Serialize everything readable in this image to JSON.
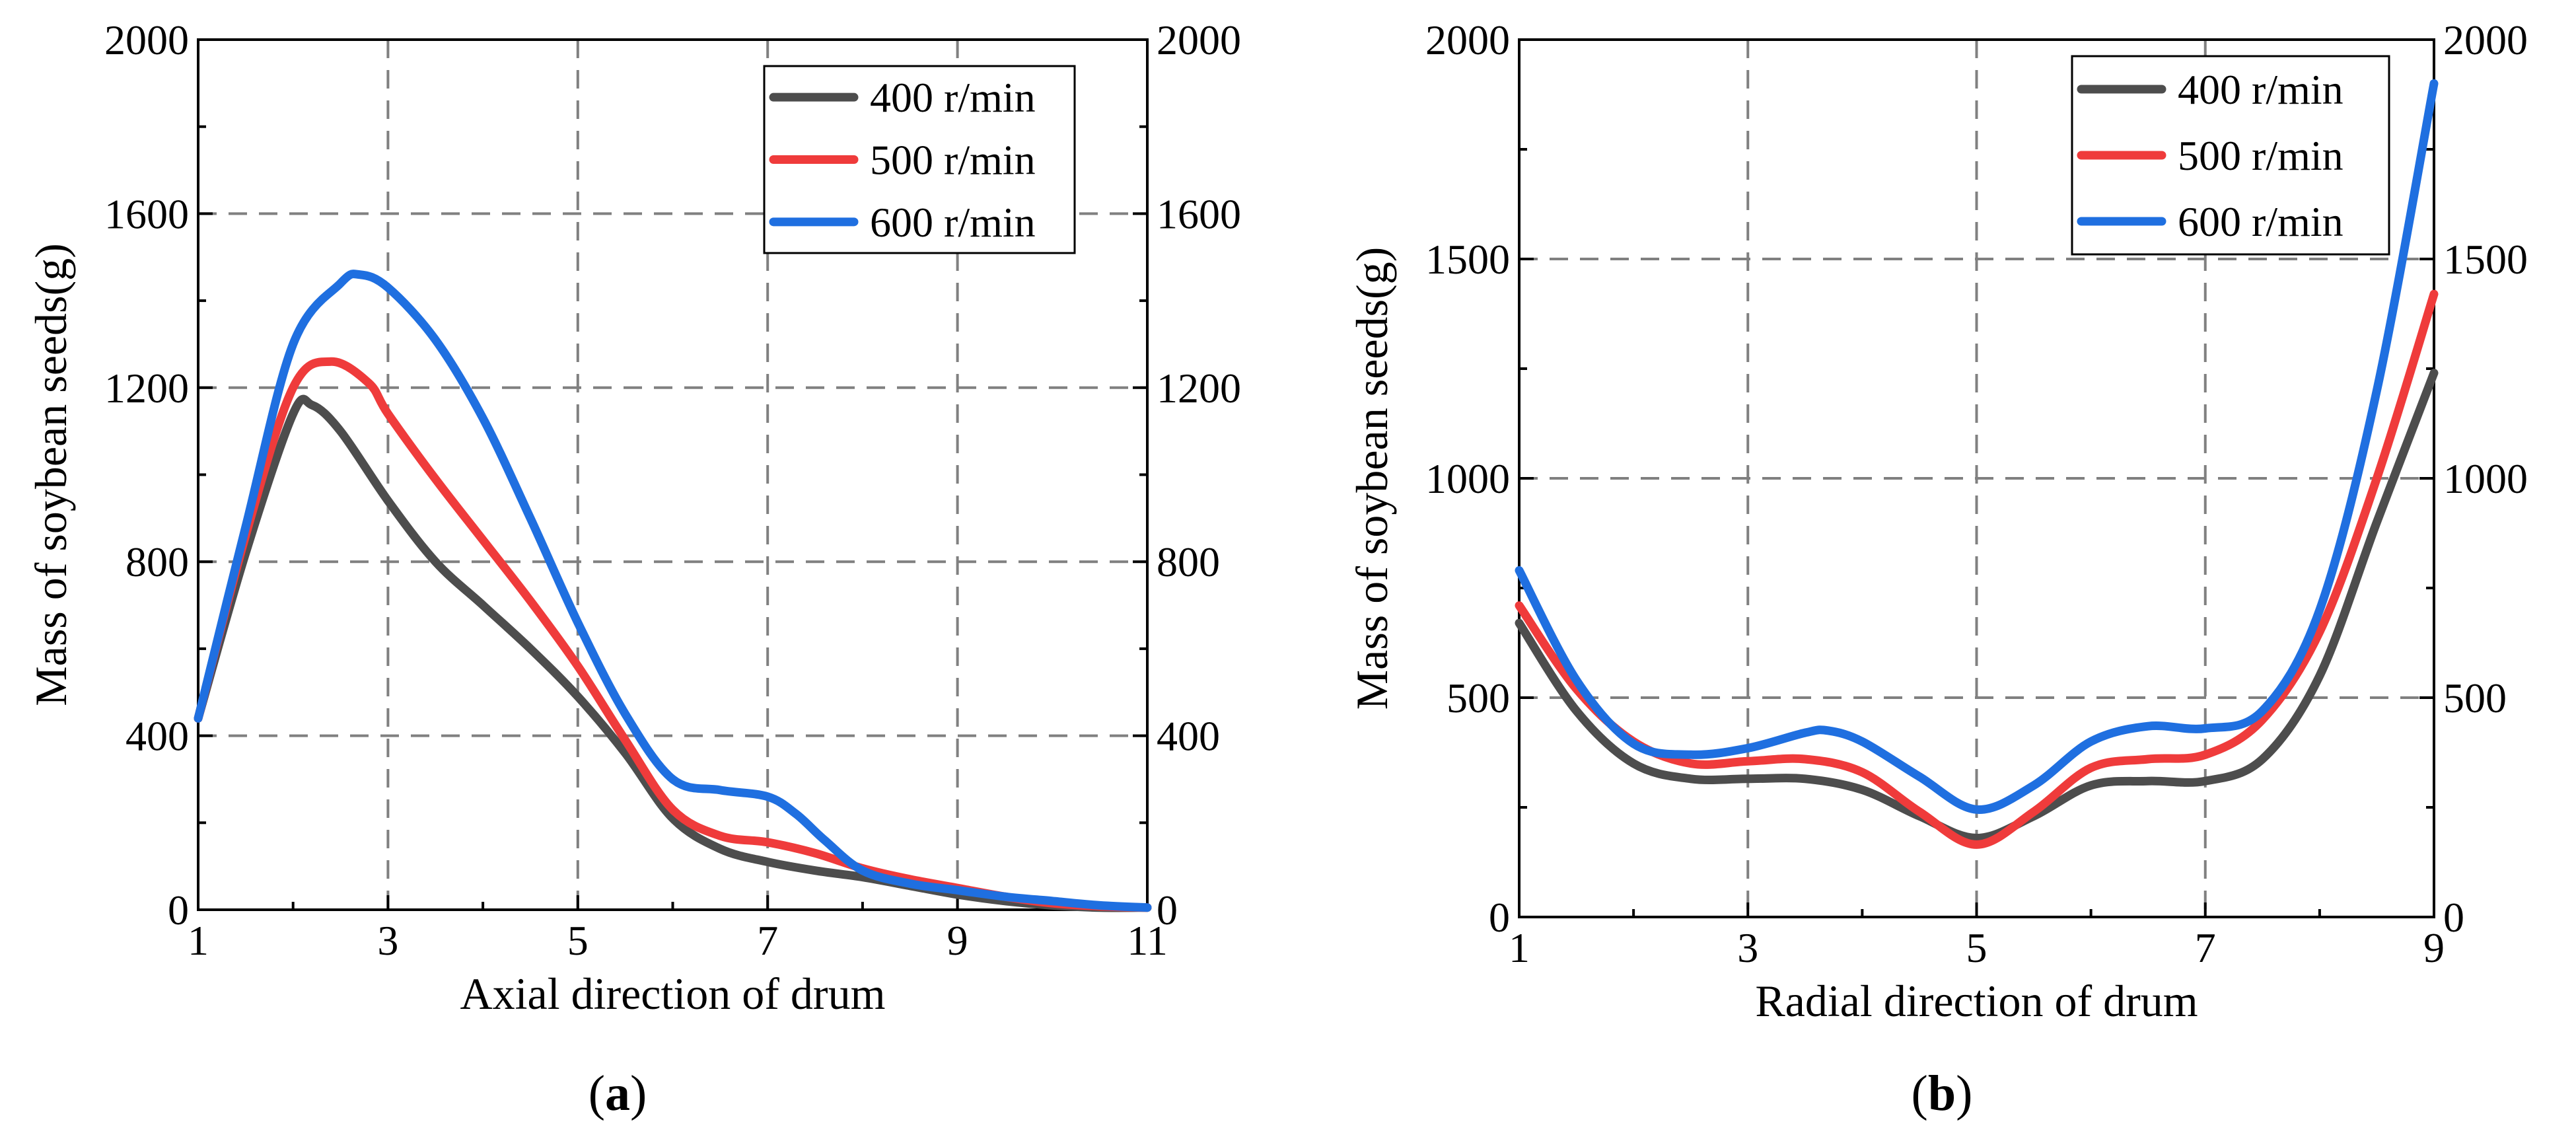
{
  "chart_data": [
    {
      "type": "line",
      "caption_letter": "a",
      "xlabel": "Axial direction of drum",
      "ylabel": "Mass of soybean seeds(g)",
      "xlim": [
        1,
        11
      ],
      "ylim": [
        0,
        2000
      ],
      "xticks": [
        1,
        3,
        5,
        7,
        9,
        11
      ],
      "yticks": [
        0,
        400,
        800,
        1200,
        1600,
        2000
      ],
      "x_minor": [
        2,
        4,
        6,
        8,
        10
      ],
      "y_minor": [
        200,
        600,
        1000,
        1400,
        1800
      ],
      "right_axis_ticks": [
        "0",
        "400",
        "800",
        "1200",
        "1600",
        "2000"
      ],
      "legend_position": "top-right",
      "series": [
        {
          "name": "400 r/min",
          "color": "#4d4d4d",
          "x": [
            1,
            1.5,
            2,
            2.2,
            2.5,
            3,
            3.5,
            4,
            4.5,
            5,
            5.5,
            6,
            6.5,
            7,
            7.5,
            8,
            8.5,
            9,
            9.5,
            10,
            10.5,
            11
          ],
          "y": [
            440,
            820,
            1140,
            1160,
            1100,
            940,
            800,
            700,
            600,
            490,
            360,
            210,
            140,
            110,
            90,
            75,
            55,
            35,
            20,
            10,
            5,
            5
          ]
        },
        {
          "name": "500 r/min",
          "color": "#ef3b3b",
          "x": [
            1,
            1.5,
            2,
            2.4,
            2.8,
            3,
            3.5,
            4,
            4.5,
            5,
            5.5,
            6,
            6.5,
            7,
            7.5,
            8,
            8.5,
            9,
            9.5,
            10,
            10.5,
            11
          ],
          "y": [
            440,
            860,
            1200,
            1260,
            1210,
            1140,
            990,
            850,
            710,
            560,
            390,
            230,
            170,
            155,
            130,
            95,
            70,
            50,
            30,
            15,
            8,
            5
          ]
        },
        {
          "name": "600 r/min",
          "color": "#1f6fe0",
          "x": [
            1,
            1.5,
            2,
            2.5,
            2.7,
            3,
            3.5,
            4,
            4.5,
            5,
            5.5,
            6,
            6.5,
            7,
            7.3,
            7.6,
            8,
            8.5,
            9,
            9.5,
            10,
            10.5,
            11
          ],
          "y": [
            440,
            880,
            1300,
            1440,
            1460,
            1430,
            1310,
            1130,
            900,
            660,
            450,
            300,
            275,
            260,
            220,
            160,
            90,
            60,
            45,
            30,
            20,
            10,
            5
          ]
        }
      ]
    },
    {
      "type": "line",
      "caption_letter": "b",
      "xlabel": "Radial direction of drum",
      "ylabel": "Mass of soybean seeds(g)",
      "xlim": [
        1,
        9
      ],
      "ylim": [
        0,
        2000
      ],
      "xticks": [
        1,
        3,
        5,
        7,
        9
      ],
      "yticks": [
        0,
        500,
        1000,
        1500,
        2000
      ],
      "x_minor": [
        2,
        4,
        6,
        8
      ],
      "y_minor": [
        250,
        750,
        1250,
        1750
      ],
      "right_axis_ticks": [
        "0",
        "500",
        "1000",
        "1500",
        "2000"
      ],
      "legend_position": "top-right",
      "series": [
        {
          "name": "400 r/min",
          "color": "#4d4d4d",
          "x": [
            1,
            1.5,
            2,
            2.5,
            3,
            3.5,
            4,
            4.5,
            5,
            5.5,
            6,
            6.5,
            7,
            7.5,
            8,
            8.5,
            9
          ],
          "y": [
            670,
            470,
            350,
            315,
            315,
            315,
            290,
            230,
            180,
            230,
            300,
            310,
            310,
            360,
            550,
            900,
            1240
          ]
        },
        {
          "name": "500 r/min",
          "color": "#ef3b3b",
          "x": [
            1,
            1.5,
            2,
            2.5,
            3,
            3.5,
            4,
            4.5,
            5,
            5.5,
            6,
            6.5,
            7,
            7.5,
            8,
            8.5,
            9
          ],
          "y": [
            710,
            520,
            400,
            350,
            355,
            360,
            330,
            240,
            165,
            240,
            340,
            360,
            370,
            450,
            650,
            1000,
            1420
          ]
        },
        {
          "name": "600 r/min",
          "color": "#1f6fe0",
          "x": [
            1,
            1.5,
            2,
            2.5,
            3,
            3.5,
            3.7,
            4,
            4.5,
            5,
            5.5,
            6,
            6.5,
            7,
            7.5,
            8,
            8.5,
            9
          ],
          "y": [
            790,
            540,
            395,
            370,
            385,
            420,
            425,
            400,
            320,
            245,
            300,
            400,
            435,
            430,
            470,
            700,
            1200,
            1900
          ]
        }
      ]
    }
  ]
}
